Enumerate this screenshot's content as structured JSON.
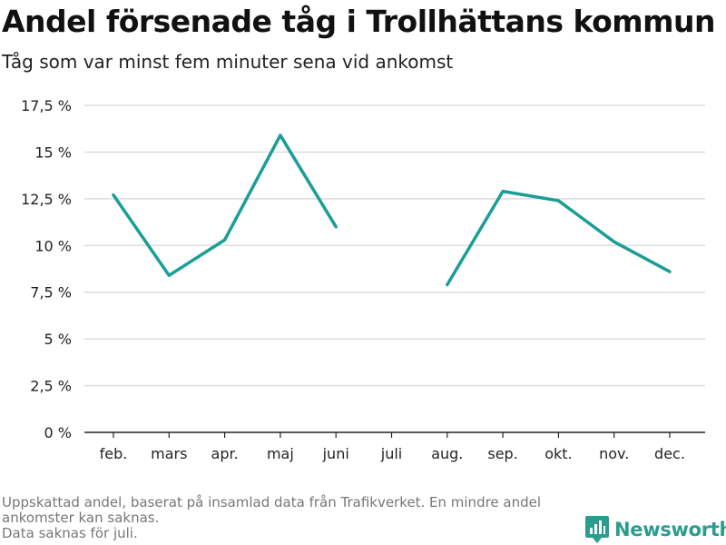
{
  "title": "Andel försenade tåg i Trollhättans kommun",
  "subtitle": "Tåg som var minst fem minuter sena vid ankomst",
  "footnote": {
    "line1": "Uppskattad andel, baserat på insamlad data från Trafikverket. En mindre andel ankomster kan saknas.",
    "line2": "Data saknas för juli."
  },
  "brand": {
    "name": "Newsworthy",
    "icon": "newsworthy-logo-icon",
    "color": "#2a9d8f"
  },
  "chart_data": {
    "type": "line",
    "categories": [
      "feb.",
      "mars",
      "apr.",
      "maj",
      "juni",
      "juli",
      "aug.",
      "sep.",
      "okt.",
      "nov.",
      "dec."
    ],
    "series": [
      {
        "values": [
          12.7,
          8.4,
          10.3,
          15.9,
          11.0,
          null,
          7.9,
          12.9,
          12.4,
          10.2,
          8.6
        ],
        "color": "#1a9e96"
      }
    ],
    "ylim": [
      0,
      17.5
    ],
    "yticks": [
      0,
      2.5,
      5,
      7.5,
      10,
      12.5,
      15,
      17.5
    ],
    "ytick_labels": [
      "0 %",
      "2,5 %",
      "5 %",
      "7,5 %",
      "10 %",
      "12,5 %",
      "15 %",
      "17,5 %"
    ],
    "grid": true
  }
}
